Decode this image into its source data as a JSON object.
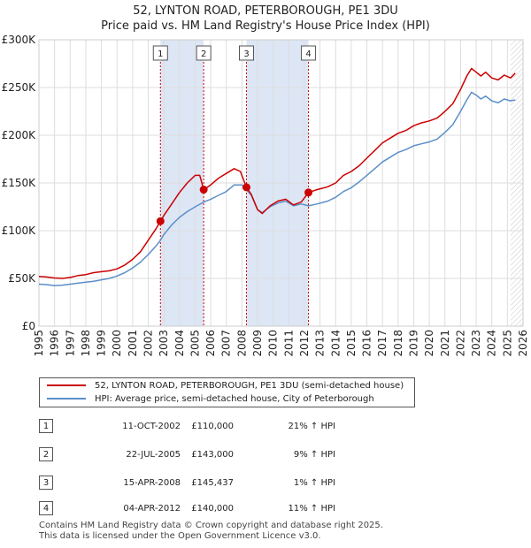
{
  "title": {
    "line1": "52, LYNTON ROAD, PETERBOROUGH, PE1 3DU",
    "line2": "Price paid vs. HM Land Registry's House Price Index (HPI)"
  },
  "chart_data": {
    "type": "line",
    "title": "52, LYNTON ROAD, PETERBOROUGH, PE1 3DU — Price paid vs. HM Land Registry's House Price Index (HPI)",
    "xlim": [
      1995,
      2026
    ],
    "ylim": [
      0,
      300000
    ],
    "x_ticks": [
      1995,
      1996,
      1997,
      1998,
      1999,
      2000,
      2001,
      2002,
      2003,
      2004,
      2005,
      2006,
      2007,
      2008,
      2009,
      2010,
      2011,
      2012,
      2013,
      2014,
      2015,
      2016,
      2017,
      2018,
      2019,
      2020,
      2021,
      2022,
      2023,
      2024,
      2025,
      2026
    ],
    "y_ticks": [
      {
        "value": 0,
        "label": "£0"
      },
      {
        "value": 50000,
        "label": "£50K"
      },
      {
        "value": 100000,
        "label": "£100K"
      },
      {
        "value": 150000,
        "label": "£150K"
      },
      {
        "value": 200000,
        "label": "£200K"
      },
      {
        "value": 250000,
        "label": "£250K"
      },
      {
        "value": 300000,
        "label": "£300K"
      }
    ],
    "grid": true,
    "shaded_periods": [
      [
        2002.78,
        2005.55
      ],
      [
        2008.29,
        2012.26
      ]
    ],
    "forecast_start": 2025.2,
    "series": [
      {
        "name": "52, LYNTON ROAD, PETERBOROUGH, PE1 3DU (semi-detached house)",
        "color": "#cc0000",
        "points": [
          [
            1995.0,
            52000
          ],
          [
            1995.5,
            51500
          ],
          [
            1996.0,
            50500
          ],
          [
            1996.5,
            50000
          ],
          [
            1997.0,
            51000
          ],
          [
            1997.5,
            53000
          ],
          [
            1998.0,
            54000
          ],
          [
            1998.5,
            56000
          ],
          [
            1999.0,
            57000
          ],
          [
            1999.5,
            58000
          ],
          [
            2000.0,
            60000
          ],
          [
            2000.5,
            64000
          ],
          [
            2001.0,
            70000
          ],
          [
            2001.5,
            78000
          ],
          [
            2002.0,
            90000
          ],
          [
            2002.5,
            102000
          ],
          [
            2002.78,
            110000
          ],
          [
            2003.0,
            116000
          ],
          [
            2003.5,
            128000
          ],
          [
            2004.0,
            140000
          ],
          [
            2004.5,
            150000
          ],
          [
            2005.0,
            158000
          ],
          [
            2005.3,
            158000
          ],
          [
            2005.55,
            143000
          ],
          [
            2006.0,
            148000
          ],
          [
            2006.5,
            155000
          ],
          [
            2007.0,
            160000
          ],
          [
            2007.5,
            165000
          ],
          [
            2007.9,
            162000
          ],
          [
            2008.29,
            145437
          ],
          [
            2008.6,
            138000
          ],
          [
            2009.0,
            122000
          ],
          [
            2009.3,
            118000
          ],
          [
            2009.8,
            126000
          ],
          [
            2010.3,
            131000
          ],
          [
            2010.8,
            133000
          ],
          [
            2011.3,
            127000
          ],
          [
            2011.8,
            130000
          ],
          [
            2012.26,
            140000
          ],
          [
            2012.8,
            143000
          ],
          [
            2013.5,
            146000
          ],
          [
            2014.0,
            150000
          ],
          [
            2014.5,
            158000
          ],
          [
            2015.0,
            162000
          ],
          [
            2015.5,
            168000
          ],
          [
            2016.0,
            176000
          ],
          [
            2016.5,
            184000
          ],
          [
            2017.0,
            192000
          ],
          [
            2017.5,
            197000
          ],
          [
            2018.0,
            202000
          ],
          [
            2018.5,
            205000
          ],
          [
            2019.0,
            210000
          ],
          [
            2019.5,
            213000
          ],
          [
            2020.0,
            215000
          ],
          [
            2020.5,
            218000
          ],
          [
            2021.0,
            225000
          ],
          [
            2021.5,
            233000
          ],
          [
            2022.0,
            248000
          ],
          [
            2022.4,
            262000
          ],
          [
            2022.7,
            270000
          ],
          [
            2023.0,
            266000
          ],
          [
            2023.3,
            262000
          ],
          [
            2023.6,
            266000
          ],
          [
            2024.0,
            260000
          ],
          [
            2024.4,
            258000
          ],
          [
            2024.8,
            263000
          ],
          [
            2025.2,
            260000
          ],
          [
            2025.5,
            265000
          ]
        ]
      },
      {
        "name": "HPI: Average price, semi-detached house, City of Peterborough",
        "color": "#5b8fc9",
        "points": [
          [
            1995.0,
            44000
          ],
          [
            1995.5,
            43500
          ],
          [
            1996.0,
            42500
          ],
          [
            1996.5,
            43000
          ],
          [
            1997.0,
            44000
          ],
          [
            1997.5,
            45000
          ],
          [
            1998.0,
            46000
          ],
          [
            1998.5,
            47000
          ],
          [
            1999.0,
            48500
          ],
          [
            1999.5,
            50000
          ],
          [
            2000.0,
            52500
          ],
          [
            2000.5,
            56000
          ],
          [
            2001.0,
            61000
          ],
          [
            2001.5,
            67000
          ],
          [
            2002.0,
            75000
          ],
          [
            2002.5,
            84000
          ],
          [
            2002.78,
            90000
          ],
          [
            2003.0,
            96000
          ],
          [
            2003.5,
            106000
          ],
          [
            2004.0,
            114000
          ],
          [
            2004.5,
            120000
          ],
          [
            2005.0,
            125000
          ],
          [
            2005.55,
            130000
          ],
          [
            2006.0,
            133000
          ],
          [
            2006.5,
            137000
          ],
          [
            2007.0,
            141000
          ],
          [
            2007.5,
            148000
          ],
          [
            2008.0,
            148000
          ],
          [
            2008.29,
            143000
          ],
          [
            2008.6,
            137000
          ],
          [
            2009.0,
            122000
          ],
          [
            2009.3,
            119000
          ],
          [
            2009.8,
            125000
          ],
          [
            2010.3,
            129000
          ],
          [
            2010.8,
            131000
          ],
          [
            2011.3,
            126000
          ],
          [
            2011.8,
            128000
          ],
          [
            2012.26,
            126000
          ],
          [
            2012.8,
            128000
          ],
          [
            2013.5,
            131000
          ],
          [
            2014.0,
            135000
          ],
          [
            2014.5,
            141000
          ],
          [
            2015.0,
            145000
          ],
          [
            2015.5,
            151000
          ],
          [
            2016.0,
            158000
          ],
          [
            2016.5,
            165000
          ],
          [
            2017.0,
            172000
          ],
          [
            2017.5,
            177000
          ],
          [
            2018.0,
            182000
          ],
          [
            2018.5,
            185000
          ],
          [
            2019.0,
            189000
          ],
          [
            2019.5,
            191000
          ],
          [
            2020.0,
            193000
          ],
          [
            2020.5,
            196000
          ],
          [
            2021.0,
            203000
          ],
          [
            2021.5,
            211000
          ],
          [
            2022.0,
            225000
          ],
          [
            2022.4,
            237000
          ],
          [
            2022.7,
            245000
          ],
          [
            2023.0,
            242000
          ],
          [
            2023.3,
            238000
          ],
          [
            2023.6,
            241000
          ],
          [
            2024.0,
            236000
          ],
          [
            2024.4,
            234000
          ],
          [
            2024.8,
            238000
          ],
          [
            2025.2,
            236000
          ],
          [
            2025.5,
            237000
          ]
        ]
      }
    ],
    "sales": [
      {
        "label": "1",
        "x": 2002.78,
        "price": 110000
      },
      {
        "label": "2",
        "x": 2005.55,
        "price": 143000
      },
      {
        "label": "3",
        "x": 2008.29,
        "price": 145437
      },
      {
        "label": "4",
        "x": 2012.26,
        "price": 140000
      }
    ]
  },
  "legend": {
    "property_label": "52, LYNTON ROAD, PETERBOROUGH, PE1 3DU (semi-detached house)",
    "hpi_label": "HPI: Average price, semi-detached house, City of Peterborough"
  },
  "transactions": [
    {
      "num": "1",
      "date": "11-OCT-2002",
      "price": "£110,000",
      "hpi": "21% ↑ HPI"
    },
    {
      "num": "2",
      "date": "22-JUL-2005",
      "price": "£143,000",
      "hpi": "9% ↑ HPI"
    },
    {
      "num": "3",
      "date": "15-APR-2008",
      "price": "£145,437",
      "hpi": "1% ↑ HPI"
    },
    {
      "num": "4",
      "date": "04-APR-2012",
      "price": "£140,000",
      "hpi": "11% ↑ HPI"
    }
  ],
  "footer": {
    "line1": "Contains HM Land Registry data © Crown copyright and database right 2025.",
    "line2": "This data is licensed under the Open Government Licence v3.0."
  }
}
